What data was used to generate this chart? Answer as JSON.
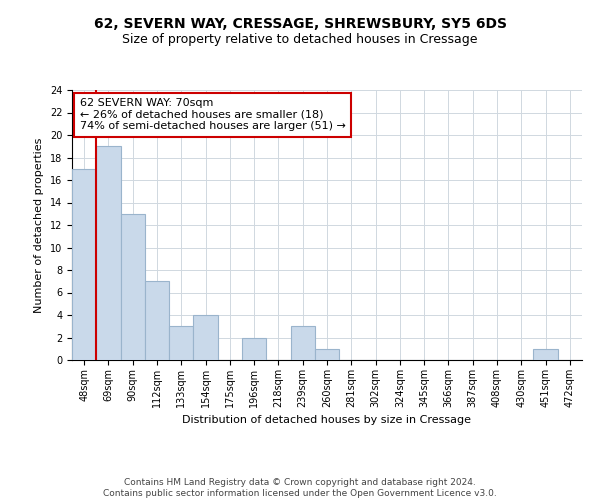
{
  "title_line1": "62, SEVERN WAY, CRESSAGE, SHREWSBURY, SY5 6DS",
  "title_line2": "Size of property relative to detached houses in Cressage",
  "xlabel": "Distribution of detached houses by size in Cressage",
  "ylabel": "Number of detached properties",
  "bar_values": [
    17,
    19,
    13,
    7,
    3,
    4,
    0,
    2,
    0,
    3,
    1,
    0,
    0,
    0,
    0,
    0,
    0,
    0,
    0,
    1,
    0
  ],
  "categories": [
    "48sqm",
    "69sqm",
    "90sqm",
    "112sqm",
    "133sqm",
    "154sqm",
    "175sqm",
    "196sqm",
    "218sqm",
    "239sqm",
    "260sqm",
    "281sqm",
    "302sqm",
    "324sqm",
    "345sqm",
    "366sqm",
    "387sqm",
    "408sqm",
    "430sqm",
    "451sqm",
    "472sqm"
  ],
  "bar_color": "#c9d9ea",
  "bar_edge_color": "#9ab4cc",
  "bar_linewidth": 0.8,
  "property_line_x": 0.5,
  "annotation_text_line1": "62 SEVERN WAY: 70sqm",
  "annotation_text_line2": "← 26% of detached houses are smaller (18)",
  "annotation_text_line3": "74% of semi-detached houses are larger (51) →",
  "annotation_box_color": "white",
  "annotation_box_edge_color": "#cc0000",
  "property_line_color": "#cc0000",
  "ylim": [
    0,
    24
  ],
  "yticks": [
    0,
    2,
    4,
    6,
    8,
    10,
    12,
    14,
    16,
    18,
    20,
    22,
    24
  ],
  "grid_color": "#d0d8e0",
  "background_color": "white",
  "footnote_line1": "Contains HM Land Registry data © Crown copyright and database right 2024.",
  "footnote_line2": "Contains public sector information licensed under the Open Government Licence v3.0.",
  "title_fontsize": 10,
  "subtitle_fontsize": 9,
  "axis_label_fontsize": 8,
  "tick_fontsize": 7,
  "annotation_fontsize": 8,
  "footnote_fontsize": 6.5
}
